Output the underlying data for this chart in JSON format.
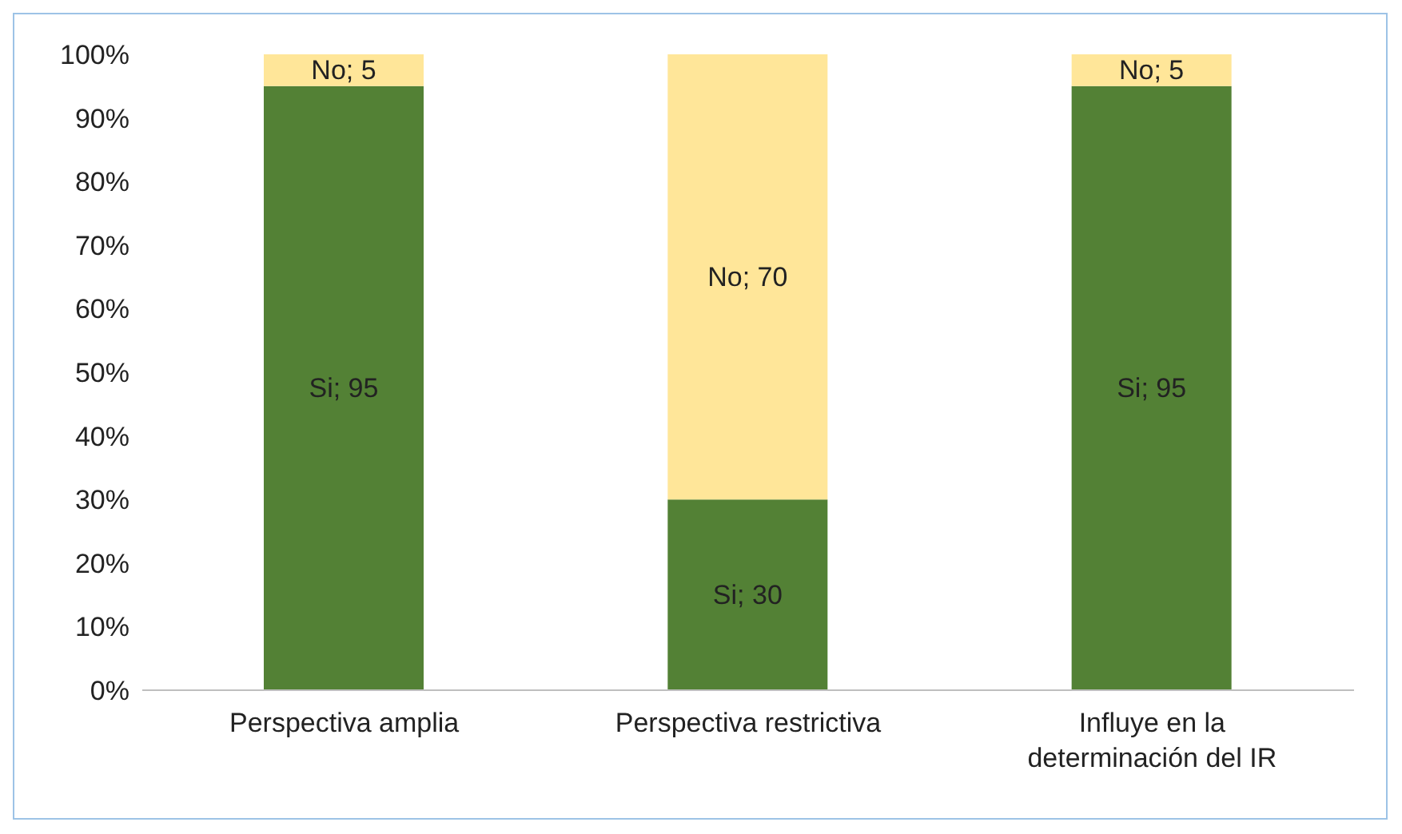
{
  "chart_data": {
    "type": "bar",
    "stacked": true,
    "categories": [
      "Perspectiva amplia",
      "Perspectiva restrictiva",
      "Influye en la determinación del IR"
    ],
    "series": [
      {
        "color": "#538135",
        "values": [
          95,
          30,
          95
        ],
        "value_labels": [
          "Si; 95",
          "Si; 30",
          "Si; 95"
        ]
      },
      {
        "color": "#ffe699",
        "values": [
          5,
          70,
          5
        ],
        "value_labels": [
          "No; 5",
          "No; 70",
          "No; 5"
        ]
      }
    ],
    "ylim": [
      0,
      100
    ],
    "yticks": [
      {
        "value": 0,
        "label": "0%"
      },
      {
        "value": 10,
        "label": "10%"
      },
      {
        "value": 20,
        "label": "20%"
      },
      {
        "value": 30,
        "label": "30%"
      },
      {
        "value": 40,
        "label": "40%"
      },
      {
        "value": 50,
        "label": "50%"
      },
      {
        "value": 60,
        "label": "60%"
      },
      {
        "value": 70,
        "label": "70%"
      },
      {
        "value": 80,
        "label": "80%"
      },
      {
        "value": 90,
        "label": "90%"
      },
      {
        "value": 100,
        "label": "100%"
      }
    ],
    "grid": false,
    "legend": false
  }
}
